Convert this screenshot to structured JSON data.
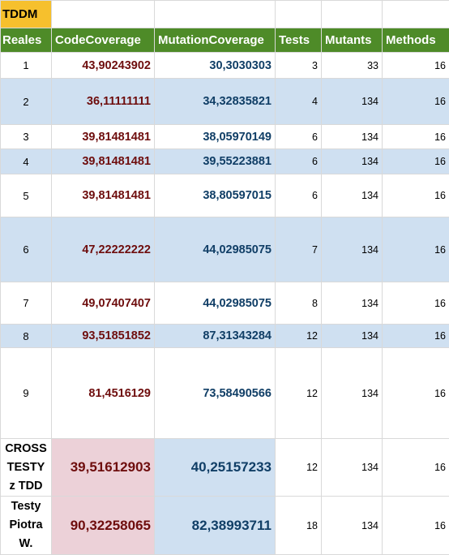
{
  "sheet": {
    "title": "TDDM",
    "headers": [
      "Reales",
      "CodeCoverage",
      "MutationCoverage",
      "Tests",
      "Mutants",
      "Methods"
    ],
    "rows": [
      {
        "label": "1",
        "code": "43,90243902",
        "mutation": "30,3030303",
        "tests": "3",
        "mutants": "33",
        "methods": "16"
      },
      {
        "label": "2",
        "code": "36,11111111",
        "mutation": "34,32835821",
        "tests": "4",
        "mutants": "134",
        "methods": "16"
      },
      {
        "label": "3",
        "code": "39,81481481",
        "mutation": "38,05970149",
        "tests": "6",
        "mutants": "134",
        "methods": "16"
      },
      {
        "label": "4",
        "code": "39,81481481",
        "mutation": "39,55223881",
        "tests": "6",
        "mutants": "134",
        "methods": "16"
      },
      {
        "label": "5",
        "code": "39,81481481",
        "mutation": "38,80597015",
        "tests": "6",
        "mutants": "134",
        "methods": "16"
      },
      {
        "label": "6",
        "code": "47,22222222",
        "mutation": "44,02985075",
        "tests": "7",
        "mutants": "134",
        "methods": "16"
      },
      {
        "label": "7",
        "code": "49,07407407",
        "mutation": "44,02985075",
        "tests": "8",
        "mutants": "134",
        "methods": "16"
      },
      {
        "label": "8",
        "code": "93,51851852",
        "mutation": "87,31343284",
        "tests": "12",
        "mutants": "134",
        "methods": "16"
      },
      {
        "label": "9",
        "code": "81,4516129",
        "mutation": "73,58490566",
        "tests": "12",
        "mutants": "134",
        "methods": "16"
      }
    ],
    "summary_rows": [
      {
        "label": "CROSS TESTY z TDD",
        "code": "39,51612903",
        "mutation": "40,25157233",
        "tests": "12",
        "mutants": "134",
        "methods": "16"
      },
      {
        "label": "Testy Piotra W.",
        "code": "90,32258065",
        "mutation": "82,38993711",
        "tests": "18",
        "mutants": "134",
        "methods": "16"
      }
    ],
    "colors": {
      "title_fill": "#f6c02d",
      "header_fill": "#4e8b28",
      "band_fill": "#cfe0f1",
      "code_text": "#6e0d0d",
      "mutation_text": "#103e66",
      "code_highlight_fill": "#ecd1d8"
    }
  }
}
